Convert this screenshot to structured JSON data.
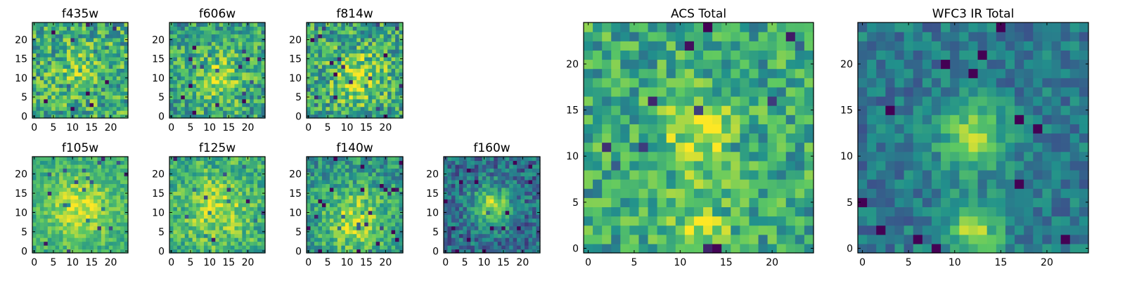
{
  "colormap": [
    "#440154",
    "#3b528b",
    "#21918c",
    "#5ec962",
    "#fde725"
  ],
  "chart_data": [
    {
      "type": "heatmap",
      "title": "f435w",
      "cols": 25,
      "rows": 25,
      "xlim": [
        -0.5,
        24.5
      ],
      "ylim": [
        -0.5,
        24.5
      ],
      "xticks": [
        {
          "v": 0,
          "label": "0"
        },
        {
          "v": 5,
          "label": "5"
        },
        {
          "v": 10,
          "label": "10"
        },
        {
          "v": 15,
          "label": "15"
        },
        {
          "v": 20,
          "label": "20"
        }
      ],
      "yticks": [
        {
          "v": 0,
          "label": "0"
        },
        {
          "v": 5,
          "label": "5"
        },
        {
          "v": 10,
          "label": "10"
        },
        {
          "v": 15,
          "label": "15"
        },
        {
          "v": 20,
          "label": "20"
        }
      ],
      "pattern": {
        "center": [
          12,
          12
        ],
        "sigma": 4,
        "amp": 0.15,
        "base": 0.62,
        "noise": 0.55,
        "seed": 11
      }
    },
    {
      "type": "heatmap",
      "title": "f606w",
      "cols": 25,
      "rows": 25,
      "xlim": [
        -0.5,
        24.5
      ],
      "ylim": [
        -0.5,
        24.5
      ],
      "xticks": [
        {
          "v": 0,
          "label": "0"
        },
        {
          "v": 5,
          "label": "5"
        },
        {
          "v": 10,
          "label": "10"
        },
        {
          "v": 15,
          "label": "15"
        },
        {
          "v": 20,
          "label": "20"
        }
      ],
      "yticks": [
        {
          "v": 0,
          "label": "0"
        },
        {
          "v": 5,
          "label": "5"
        },
        {
          "v": 10,
          "label": "10"
        },
        {
          "v": 15,
          "label": "15"
        },
        {
          "v": 20,
          "label": "20"
        }
      ],
      "pattern": {
        "center": [
          12,
          10
        ],
        "sigma": 5,
        "amp": 0.25,
        "base": 0.58,
        "noise": 0.5,
        "seed": 23
      }
    },
    {
      "type": "heatmap",
      "title": "f814w",
      "cols": 25,
      "rows": 25,
      "xlim": [
        -0.5,
        24.5
      ],
      "ylim": [
        -0.5,
        24.5
      ],
      "xticks": [
        {
          "v": 0,
          "label": "0"
        },
        {
          "v": 5,
          "label": "5"
        },
        {
          "v": 10,
          "label": "10"
        },
        {
          "v": 15,
          "label": "15"
        },
        {
          "v": 20,
          "label": "20"
        }
      ],
      "yticks": [
        {
          "v": 0,
          "label": "0"
        },
        {
          "v": 5,
          "label": "5"
        },
        {
          "v": 10,
          "label": "10"
        },
        {
          "v": 15,
          "label": "15"
        },
        {
          "v": 20,
          "label": "20"
        }
      ],
      "pattern": {
        "center": [
          13,
          10
        ],
        "sigma": 5,
        "amp": 0.3,
        "base": 0.58,
        "noise": 0.55,
        "seed": 37
      }
    },
    {
      "type": "heatmap",
      "title": "f105w",
      "cols": 25,
      "rows": 25,
      "xlim": [
        -0.5,
        24.5
      ],
      "ylim": [
        -0.5,
        24.5
      ],
      "xticks": [
        {
          "v": 0,
          "label": "0"
        },
        {
          "v": 5,
          "label": "5"
        },
        {
          "v": 10,
          "label": "10"
        },
        {
          "v": 15,
          "label": "15"
        },
        {
          "v": 20,
          "label": "20"
        }
      ],
      "yticks": [
        {
          "v": 0,
          "label": "0"
        },
        {
          "v": 5,
          "label": "5"
        },
        {
          "v": 10,
          "label": "10"
        },
        {
          "v": 15,
          "label": "15"
        },
        {
          "v": 20,
          "label": "20"
        }
      ],
      "pattern": {
        "center": [
          12,
          11
        ],
        "sigma": 6,
        "amp": 0.3,
        "base": 0.62,
        "noise": 0.3,
        "seed": 41
      }
    },
    {
      "type": "heatmap",
      "title": "f125w",
      "cols": 25,
      "rows": 25,
      "xlim": [
        -0.5,
        24.5
      ],
      "ylim": [
        -0.5,
        24.5
      ],
      "xticks": [
        {
          "v": 0,
          "label": "0"
        },
        {
          "v": 5,
          "label": "5"
        },
        {
          "v": 10,
          "label": "10"
        },
        {
          "v": 15,
          "label": "15"
        },
        {
          "v": 20,
          "label": "20"
        }
      ],
      "yticks": [
        {
          "v": 0,
          "label": "0"
        },
        {
          "v": 5,
          "label": "5"
        },
        {
          "v": 10,
          "label": "10"
        },
        {
          "v": 15,
          "label": "15"
        },
        {
          "v": 20,
          "label": "20"
        }
      ],
      "pattern": {
        "center": [
          12,
          11
        ],
        "sigma": 6,
        "amp": 0.25,
        "base": 0.62,
        "noise": 0.4,
        "seed": 53
      }
    },
    {
      "type": "heatmap",
      "title": "f140w",
      "cols": 25,
      "rows": 25,
      "xlim": [
        -0.5,
        24.5
      ],
      "ylim": [
        -0.5,
        24.5
      ],
      "xticks": [
        {
          "v": 0,
          "label": "0"
        },
        {
          "v": 5,
          "label": "5"
        },
        {
          "v": 10,
          "label": "10"
        },
        {
          "v": 15,
          "label": "15"
        },
        {
          "v": 20,
          "label": "20"
        }
      ],
      "yticks": [
        {
          "v": 0,
          "label": "0"
        },
        {
          "v": 5,
          "label": "5"
        },
        {
          "v": 10,
          "label": "10"
        },
        {
          "v": 15,
          "label": "15"
        },
        {
          "v": 20,
          "label": "20"
        }
      ],
      "pattern": {
        "center": [
          12,
          8
        ],
        "sigma": 6,
        "amp": 0.35,
        "base": 0.52,
        "noise": 0.4,
        "seed": 67
      }
    },
    {
      "type": "heatmap",
      "title": "f160w",
      "cols": 25,
      "rows": 25,
      "xlim": [
        -0.5,
        24.5
      ],
      "ylim": [
        -0.5,
        24.5
      ],
      "xticks": [
        {
          "v": 0,
          "label": "0"
        },
        {
          "v": 5,
          "label": "5"
        },
        {
          "v": 10,
          "label": "10"
        },
        {
          "v": 15,
          "label": "15"
        },
        {
          "v": 20,
          "label": "20"
        }
      ],
      "yticks": [
        {
          "v": 0,
          "label": "0"
        },
        {
          "v": 5,
          "label": "5"
        },
        {
          "v": 10,
          "label": "10"
        },
        {
          "v": 15,
          "label": "15"
        },
        {
          "v": 20,
          "label": "20"
        }
      ],
      "pattern": {
        "center": [
          12,
          12
        ],
        "sigma": 3.5,
        "amp": 0.5,
        "base": 0.36,
        "noise": 0.4,
        "seed": 79
      }
    },
    {
      "type": "heatmap",
      "title": "ACS Total",
      "cols": 25,
      "rows": 25,
      "xlim": [
        -0.5,
        24.5
      ],
      "ylim": [
        -0.5,
        24.5
      ],
      "xticks": [
        {
          "v": 0,
          "label": "0"
        },
        {
          "v": 5,
          "label": "5"
        },
        {
          "v": 10,
          "label": "10"
        },
        {
          "v": 15,
          "label": "15"
        },
        {
          "v": 20,
          "label": "20"
        }
      ],
      "yticks": [
        {
          "v": 0,
          "label": "0"
        },
        {
          "v": 5,
          "label": "5"
        },
        {
          "v": 10,
          "label": "10"
        },
        {
          "v": 15,
          "label": "15"
        },
        {
          "v": 20,
          "label": "20"
        }
      ],
      "pattern": {
        "center": [
          12,
          12
        ],
        "sigma": 3,
        "amp": 0.3,
        "base": 0.6,
        "noise": 0.45,
        "seed": 97,
        "extra": [
          12,
          2,
          0.3
        ]
      }
    },
    {
      "type": "heatmap",
      "title": "WFC3 IR Total",
      "cols": 25,
      "rows": 25,
      "xlim": [
        -0.5,
        24.5
      ],
      "ylim": [
        -0.5,
        24.5
      ],
      "xticks": [
        {
          "v": 0,
          "label": "0"
        },
        {
          "v": 5,
          "label": "5"
        },
        {
          "v": 10,
          "label": "10"
        },
        {
          "v": 15,
          "label": "15"
        },
        {
          "v": 20,
          "label": "20"
        }
      ],
      "yticks": [
        {
          "v": 0,
          "label": "0"
        },
        {
          "v": 5,
          "label": "5"
        },
        {
          "v": 10,
          "label": "10"
        },
        {
          "v": 15,
          "label": "15"
        },
        {
          "v": 20,
          "label": "20"
        }
      ],
      "pattern": {
        "center": [
          12,
          12
        ],
        "sigma": 2.5,
        "amp": 0.5,
        "base": 0.4,
        "noise": 0.3,
        "seed": 113,
        "extra": [
          12,
          2,
          0.45
        ]
      }
    }
  ]
}
